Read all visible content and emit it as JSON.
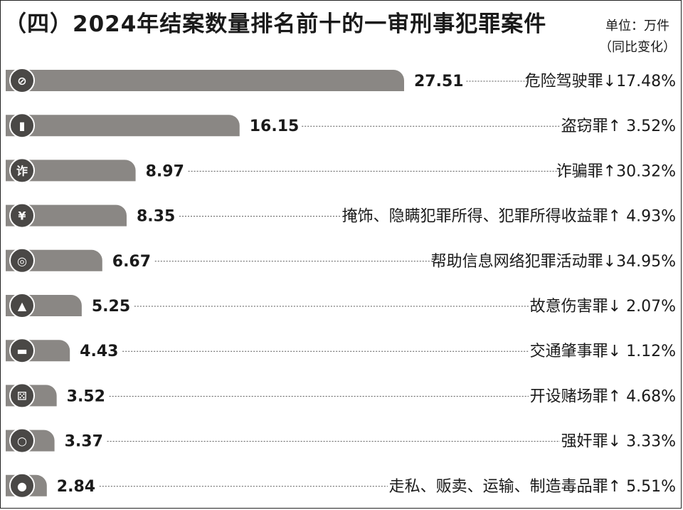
{
  "chart_data": {
    "type": "bar",
    "title": "（四）2024年结案数量排名前十的一审刑事犯罪案件",
    "unit_line1": "单位：万件",
    "unit_line2": "（同比变化）",
    "categories": [
      "危险驾驶罪",
      "盗窃罪",
      "诈骗罪",
      "掩饰、隐瞒犯罪所得、犯罪所得收益罪",
      "帮助信息网络犯罪活动罪",
      "故意伤害罪",
      "交通肇事罪",
      "开设赌场罪",
      "强奸罪",
      "走私、贩卖、运输、制造毒品罪"
    ],
    "values": [
      27.51,
      16.15,
      8.97,
      8.35,
      6.67,
      5.25,
      4.43,
      3.52,
      3.37,
      2.84
    ],
    "value_labels": [
      "27.51",
      "16.15",
      "8.97",
      "8.35",
      "6.67",
      "5.25",
      "4.43",
      "3.52",
      "3.37",
      "2.84"
    ],
    "changes": [
      "↓17.48%",
      "↑ 3.52%",
      "↑30.32%",
      "↑ 4.93%",
      "↓34.95%",
      "↓ 2.07%",
      "↓ 1.12%",
      "↑ 4.68%",
      "↓ 3.33%",
      "↑ 5.51%"
    ],
    "icons": [
      "no-driving-icon",
      "thief-icon",
      "fraud-icon",
      "money-bag-icon",
      "globe-icon",
      "knife-icon",
      "car-crash-icon",
      "dice-icon",
      "rings-icon",
      "pill-icon"
    ],
    "colors": {
      "bar": "#8a8784",
      "icon_bg": "#4a4846",
      "text": "#1a1a1a"
    }
  }
}
